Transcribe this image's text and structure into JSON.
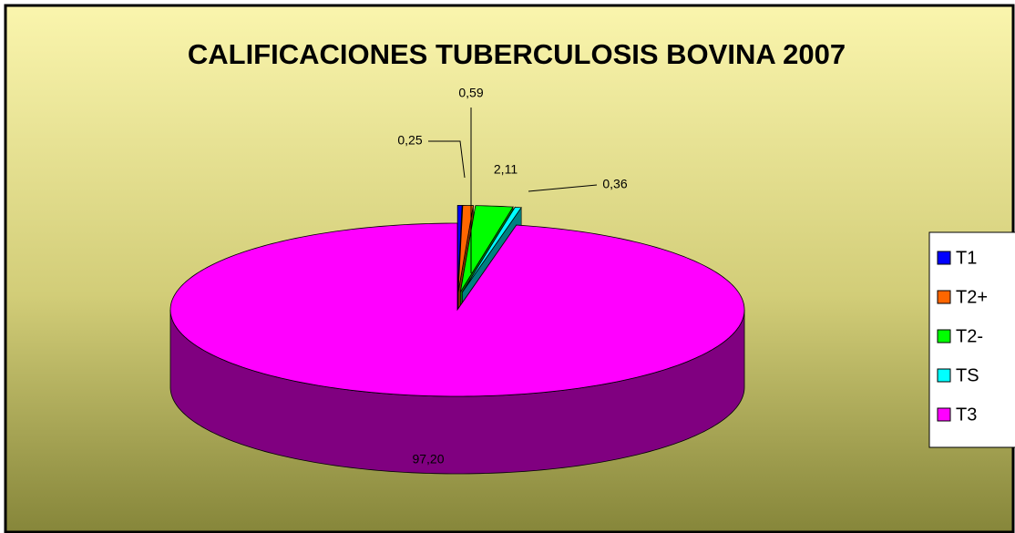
{
  "chart_data": {
    "type": "pie3d",
    "title": "CALIFICACIONES TUBERCULOSIS BOVINA 2007",
    "categories": [
      "T1",
      "T2+",
      "T2-",
      "TS",
      "T3"
    ],
    "values": [
      0.25,
      0.59,
      2.11,
      0.36,
      97.2
    ],
    "value_labels": [
      "0,25",
      "0,59",
      "2,11",
      "0,36",
      "97,20"
    ],
    "colors": [
      "#0000ff",
      "#ff6600",
      "#00ff00",
      "#00ffff",
      "#ff00ff"
    ],
    "legend": "right"
  }
}
